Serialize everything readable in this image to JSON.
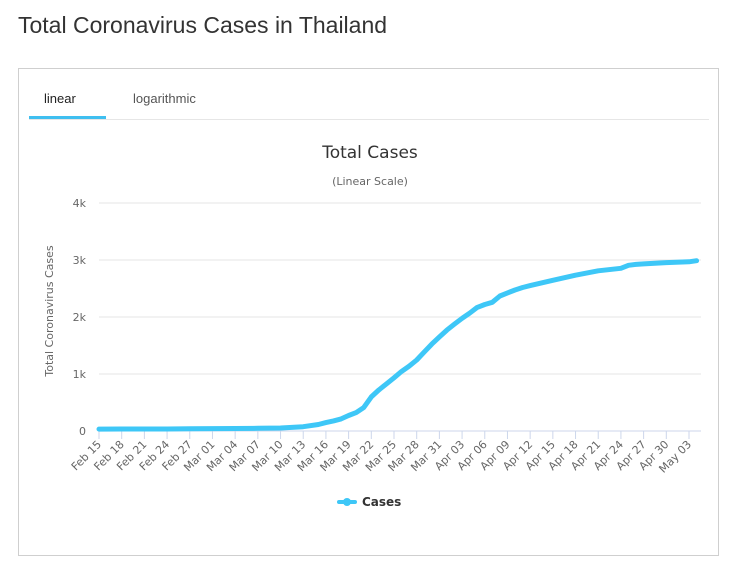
{
  "page": {
    "title": "Total Coronavirus Cases in Thailand"
  },
  "tabs": [
    {
      "label": "linear",
      "active": true
    },
    {
      "label": "logarithmic",
      "active": false
    }
  ],
  "colors": {
    "series": "#3ec7f7",
    "tab_underline": "#3fbff0",
    "grid": "#e6e6e6"
  },
  "chart_data": {
    "type": "line",
    "title": "Total Cases",
    "subtitle": "(Linear Scale)",
    "xlabel": "",
    "ylabel": "Total Coronavirus Cases",
    "ylim": [
      0,
      4000
    ],
    "y_ticks": [
      {
        "value": 0,
        "label": "0"
      },
      {
        "value": 1000,
        "label": "1k"
      },
      {
        "value": 2000,
        "label": "2k"
      },
      {
        "value": 3000,
        "label": "3k"
      },
      {
        "value": 4000,
        "label": "4k"
      }
    ],
    "x_tick_labels": [
      "Feb 15",
      "Feb 18",
      "Feb 21",
      "Feb 24",
      "Feb 27",
      "Mar 01",
      "Mar 04",
      "Mar 07",
      "Mar 10",
      "Mar 13",
      "Mar 16",
      "Mar 19",
      "Mar 22",
      "Mar 25",
      "Mar 28",
      "Mar 31",
      "Apr 03",
      "Apr 06",
      "Apr 09",
      "Apr 12",
      "Apr 15",
      "Apr 18",
      "Apr 21",
      "Apr 24",
      "Apr 27",
      "Apr 30",
      "May 03"
    ],
    "x_start": "Feb 15",
    "grid": true,
    "legend": {
      "position": "bottom-center",
      "entries": [
        "Cases"
      ]
    },
    "series": [
      {
        "name": "Cases",
        "x": [
          "Feb 15",
          "Feb 18",
          "Feb 21",
          "Feb 24",
          "Feb 27",
          "Mar 01",
          "Mar 04",
          "Mar 07",
          "Mar 10",
          "Mar 13",
          "Mar 15",
          "Mar 16",
          "Mar 17",
          "Mar 18",
          "Mar 19",
          "Mar 20",
          "Mar 21",
          "Mar 22",
          "Mar 23",
          "Mar 24",
          "Mar 25",
          "Mar 26",
          "Mar 27",
          "Mar 28",
          "Mar 29",
          "Mar 30",
          "Mar 31",
          "Apr 01",
          "Apr 02",
          "Apr 03",
          "Apr 04",
          "Apr 05",
          "Apr 06",
          "Apr 07",
          "Apr 08",
          "Apr 09",
          "Apr 10",
          "Apr 11",
          "Apr 12",
          "Apr 15",
          "Apr 18",
          "Apr 21",
          "Apr 24",
          "Apr 25",
          "Apr 26",
          "Apr 27",
          "Apr 30",
          "May 03",
          "May 04"
        ],
        "values": [
          34,
          35,
          35,
          35,
          40,
          42,
          43,
          47,
          53,
          75,
          114,
          147,
          177,
          212,
          272,
          322,
          411,
          599,
          721,
          827,
          934,
          1045,
          1136,
          1245,
          1388,
          1524,
          1651,
          1771,
          1875,
          1978,
          2067,
          2169,
          2220,
          2258,
          2369,
          2423,
          2473,
          2518,
          2551,
          2643,
          2733,
          2811,
          2854,
          2907,
          2922,
          2931,
          2954,
          2969,
          2987
        ]
      }
    ]
  }
}
